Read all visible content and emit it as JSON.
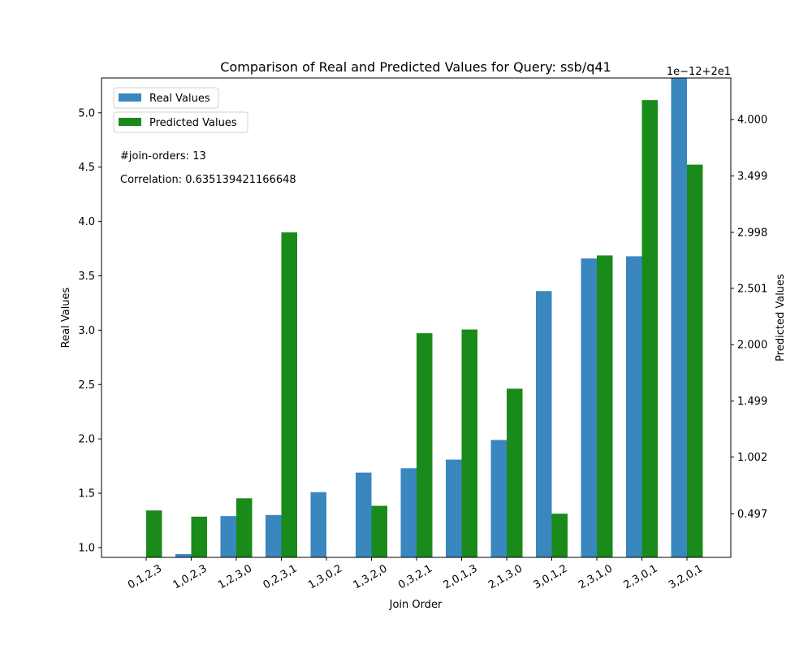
{
  "chart_data": {
    "type": "bar",
    "title": "Comparison of Real and Predicted Values for Query: ssb/q41",
    "xlabel": "Join Order",
    "ylabel": "Real Values",
    "y2label": "Predicted Values",
    "y2_offset_label": "1e−12+2e1",
    "categories": [
      "0,1,2,3",
      "1,0,2,3",
      "1,2,3,0",
      "0,2,3,1",
      "1,3,0,2",
      "1,3,2,0",
      "0,3,2,1",
      "2,0,1,3",
      "2,1,3,0",
      "3,0,1,2",
      "2,3,1,0",
      "2,3,0,1",
      "3,2,0,1"
    ],
    "series": [
      {
        "name": "Real Values",
        "axis": "left",
        "color": "#3a87c0",
        "values": [
          0.88,
          0.94,
          1.29,
          1.3,
          1.51,
          1.69,
          1.73,
          1.81,
          1.99,
          3.36,
          3.66,
          3.68,
          5.32
        ]
      },
      {
        "name": "Predicted Values",
        "axis": "right",
        "color": "#1a8a1a",
        "values": [
          0.527,
          0.472,
          0.635,
          2.998,
          0.05,
          0.568,
          2.102,
          2.135,
          1.609,
          0.498,
          2.793,
          4.174,
          3.6
        ]
      }
    ],
    "ylim": [
      0.91,
      5.32
    ],
    "yticks": [
      1.0,
      1.5,
      2.0,
      2.5,
      3.0,
      3.5,
      4.0,
      4.5,
      5.0
    ],
    "ytick_labels": [
      "1.0",
      "1.5",
      "2.0",
      "2.5",
      "3.0",
      "3.5",
      "4.0",
      "4.5",
      "5.0"
    ],
    "y2lim": [
      0.11,
      4.37
    ],
    "y2ticks": [
      0.497,
      1.002,
      1.499,
      2.0,
      2.501,
      2.998,
      3.499,
      4.0
    ],
    "y2tick_labels": [
      "0.497",
      "1.002",
      "1.499",
      "2.000",
      "2.501",
      "2.998",
      "3.499",
      "4.000"
    ],
    "legend_placement": "top-left",
    "annotations": [
      "#join-orders: 13",
      "Correlation: 0.635139421166648"
    ],
    "grid": false
  }
}
